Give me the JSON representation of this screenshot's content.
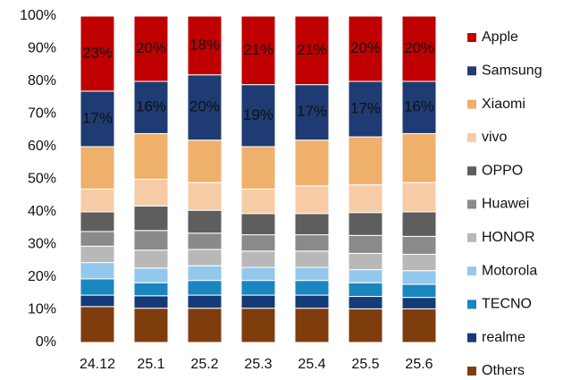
{
  "chart_data": {
    "type": "stacked_bar",
    "categories": [
      "24.12",
      "25.1",
      "25.2",
      "25.3",
      "25.4",
      "25.5",
      "25.6"
    ],
    "series": [
      {
        "name": "Apple",
        "color": "#c00000",
        "values": [
          23,
          20,
          18,
          21,
          21,
          20,
          20
        ],
        "value_labels": [
          "23%",
          "20%",
          "18%",
          "21%",
          "21%",
          "20%",
          "20%"
        ]
      },
      {
        "name": "Samsung",
        "color": "#1f3b73",
        "values": [
          17,
          16,
          20,
          19,
          17,
          17,
          16
        ],
        "value_labels": [
          "17%",
          "16%",
          "20%",
          "19%",
          "17%",
          "17%",
          "16%"
        ]
      },
      {
        "name": "Xiaomi",
        "color": "#efb06c",
        "values": [
          13,
          14,
          13,
          13,
          14,
          14.7,
          15
        ]
      },
      {
        "name": "vivo",
        "color": "#f6cca6",
        "values": [
          7,
          8.2,
          8.5,
          7.5,
          8.5,
          8.5,
          9
        ]
      },
      {
        "name": "OPPO",
        "color": "#5e5e5e",
        "values": [
          6,
          7.5,
          7,
          6.5,
          6.5,
          7,
          7.5
        ]
      },
      {
        "name": "Huawei",
        "color": "#8a8a8a",
        "values": [
          4.5,
          6,
          5,
          5,
          5,
          5.5,
          5.5
        ]
      },
      {
        "name": "HONOR",
        "color": "#b8b8b8",
        "values": [
          5,
          5.5,
          5,
          5,
          5,
          5,
          5
        ]
      },
      {
        "name": "Motorola",
        "color": "#93c8ec",
        "values": [
          5,
          4.5,
          4.5,
          4,
          4,
          4,
          4.2
        ]
      },
      {
        "name": "TECNO",
        "color": "#1a86c0",
        "values": [
          5,
          4,
          4.5,
          4.5,
          4.5,
          4.2,
          4
        ]
      },
      {
        "name": "realme",
        "color": "#143a78",
        "values": [
          3.5,
          3.8,
          4,
          4,
          4,
          3.8,
          3.5
        ]
      },
      {
        "name": "Others",
        "color": "#7f3d0d",
        "values": [
          11,
          10.5,
          10.5,
          10.5,
          10.5,
          10.3,
          10.3
        ]
      }
    ],
    "ylim": [
      0,
      100
    ],
    "yticks": [
      {
        "value": 0,
        "label": "0%"
      },
      {
        "value": 10,
        "label": "10%"
      },
      {
        "value": 20,
        "label": "20%"
      },
      {
        "value": 30,
        "label": "30%"
      },
      {
        "value": 40,
        "label": "40%"
      },
      {
        "value": 50,
        "label": "50%"
      },
      {
        "value": 60,
        "label": "60%"
      },
      {
        "value": 70,
        "label": "70%"
      },
      {
        "value": 80,
        "label": "80%"
      },
      {
        "value": 90,
        "label": "90%"
      },
      {
        "value": 100,
        "label": "100%"
      }
    ],
    "legend": "right"
  }
}
